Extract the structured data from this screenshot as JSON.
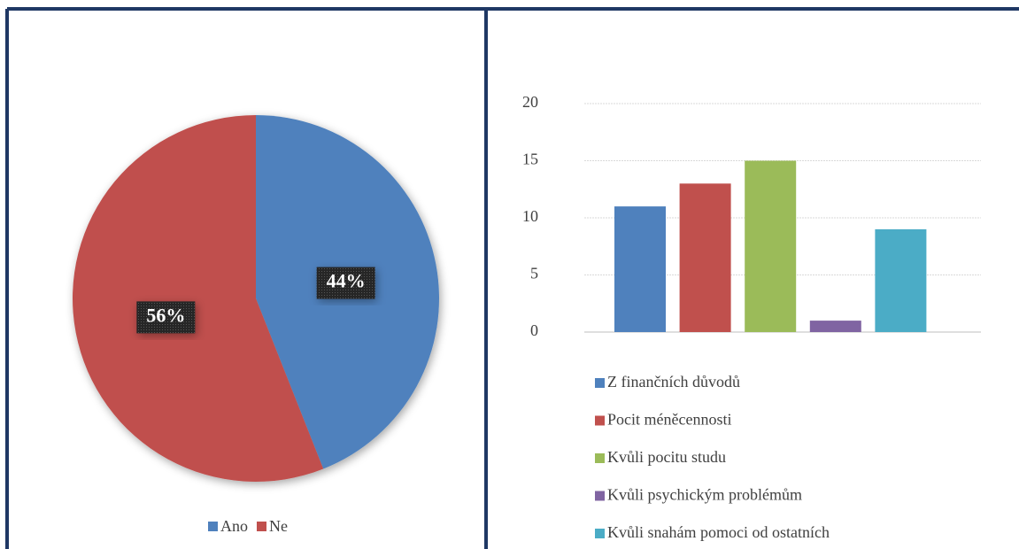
{
  "chart_data": [
    {
      "type": "pie",
      "categories": [
        "Ano",
        "Ne"
      ],
      "values": [
        44,
        56
      ],
      "value_labels": [
        "44%",
        "56%"
      ],
      "colors": [
        "#4f81bd",
        "#c0504d"
      ],
      "legend": "bottom"
    },
    {
      "type": "bar",
      "categories": [
        "Z finančních důvodů",
        "Pocit méněcennosti",
        "Kvůli pocitu studu",
        "Kvůli psychickým problémům",
        "Kvůli snahám pomoci od ostatních"
      ],
      "values": [
        11,
        13,
        15,
        1,
        9
      ],
      "colors": [
        "#4f81bd",
        "#c0504d",
        "#9bbb59",
        "#8064a2",
        "#4bacc6"
      ],
      "ylim": [
        0,
        20
      ],
      "yticks": [
        0,
        5,
        10,
        15,
        20
      ],
      "grid": true,
      "legend": "bottom"
    }
  ]
}
